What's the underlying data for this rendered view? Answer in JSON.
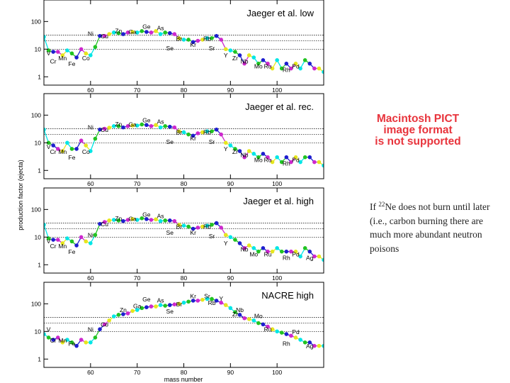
{
  "placeholder": {
    "lines": [
      "Macintosh PICT",
      "image format",
      "is not supported"
    ],
    "color": "#e8343c"
  },
  "note": {
    "prefix": "If ",
    "isotope_mass": "22",
    "isotope_rest": "Ne does not burn until later (i.e., carbon burning there are much more abundant neutron poisons"
  },
  "chart_data": {
    "type": "scatter",
    "shared": {
      "xlabel": "mass number",
      "ylabel": "production factor (ejecta)",
      "xlim": [
        50,
        110
      ],
      "ylim_log": [
        0.5,
        600
      ],
      "x_ticks": [
        "60",
        "70",
        "80",
        "90",
        "100"
      ],
      "y_ticks": [
        "1",
        "10",
        "100"
      ],
      "reference_lines": [
        10,
        20,
        32
      ],
      "colors": [
        "#00e6e6",
        "#22c322",
        "#1e1ecf",
        "#cd28cd",
        "#e6e61e"
      ],
      "x": [
        50,
        51,
        52,
        53,
        54,
        55,
        56,
        57,
        58,
        59,
        60,
        61,
        62,
        63,
        64,
        65,
        66,
        67,
        68,
        69,
        70,
        71,
        72,
        73,
        74,
        75,
        76,
        77,
        78,
        79,
        80,
        81,
        82,
        83,
        84,
        85,
        86,
        87,
        88,
        89,
        90,
        91,
        92,
        93,
        94,
        95,
        96,
        97,
        98,
        99,
        100,
        101,
        102,
        103,
        104,
        105,
        106,
        107,
        108,
        109,
        110
      ]
    },
    "panels": [
      {
        "title": "Jaeger et al. low",
        "values": [
          28,
          9,
          8,
          8,
          6,
          9,
          7,
          5,
          10,
          7,
          6,
          12,
          30,
          30,
          35,
          40,
          38,
          35,
          40,
          42,
          40,
          45,
          42,
          40,
          45,
          35,
          40,
          38,
          35,
          25,
          22,
          22,
          18,
          20,
          22,
          25,
          25,
          30,
          22,
          10,
          9,
          8,
          6,
          3,
          6,
          5,
          3,
          4,
          3,
          2,
          4,
          2,
          3,
          2,
          3,
          2,
          4,
          3,
          2,
          2,
          1.5
        ],
        "labels": [
          {
            "text": "V",
            "x": 51,
            "y": 6
          },
          {
            "text": "Cr",
            "x": 52,
            "y": 3
          },
          {
            "text": "Mn",
            "x": 54,
            "y": 4
          },
          {
            "text": "Fe",
            "x": 56,
            "y": 2.5
          },
          {
            "text": "Co",
            "x": 59,
            "y": 4
          },
          {
            "text": "Ni",
            "x": 60,
            "y": 30
          },
          {
            "text": "Cu",
            "x": 63,
            "y": 25
          },
          {
            "text": "Zn",
            "x": 66,
            "y": 38
          },
          {
            "text": "Ga",
            "x": 69,
            "y": 35
          },
          {
            "text": "Ge",
            "x": 72,
            "y": 55
          },
          {
            "text": "As",
            "x": 75,
            "y": 48
          },
          {
            "text": "Se",
            "x": 77,
            "y": 9
          },
          {
            "text": "Br",
            "x": 79,
            "y": 20
          },
          {
            "text": "Kr",
            "x": 82,
            "y": 12
          },
          {
            "text": "Rb",
            "x": 85,
            "y": 20
          },
          {
            "text": "Sr",
            "x": 86,
            "y": 9
          },
          {
            "text": "Y",
            "x": 89,
            "y": 5
          },
          {
            "text": "Zr",
            "x": 91,
            "y": 4
          },
          {
            "text": "Nb",
            "x": 93,
            "y": 3
          },
          {
            "text": "Mo",
            "x": 96,
            "y": 2
          },
          {
            "text": "Ru",
            "x": 98,
            "y": 2
          },
          {
            "text": "Rh",
            "x": 102,
            "y": 1.5
          },
          {
            "text": "Pd",
            "x": 104,
            "y": 2
          }
        ]
      },
      {
        "title": "Jaeger et al. rec.",
        "values": [
          30,
          10,
          8,
          6,
          5,
          10,
          6,
          6,
          12,
          8,
          5,
          14,
          30,
          32,
          35,
          40,
          40,
          36,
          40,
          42,
          42,
          46,
          44,
          40,
          44,
          36,
          40,
          38,
          36,
          26,
          24,
          20,
          18,
          22,
          24,
          26,
          26,
          30,
          20,
          10,
          8,
          6,
          5,
          3,
          5,
          4,
          3,
          4,
          3,
          2,
          3,
          2,
          3,
          2,
          3,
          2,
          3,
          3,
          2,
          2,
          1.5
        ],
        "labels": [
          {
            "text": "V",
            "x": 51,
            "y": 6
          },
          {
            "text": "Cr",
            "x": 52,
            "y": 4
          },
          {
            "text": "Mn",
            "x": 54,
            "y": 4
          },
          {
            "text": "Fe",
            "x": 56,
            "y": 2.5
          },
          {
            "text": "Co",
            "x": 59,
            "y": 4
          },
          {
            "text": "Ni",
            "x": 60,
            "y": 30
          },
          {
            "text": "Cu",
            "x": 63,
            "y": 25
          },
          {
            "text": "Zn",
            "x": 66,
            "y": 40
          },
          {
            "text": "Ga",
            "x": 69,
            "y": 38
          },
          {
            "text": "Ge",
            "x": 72,
            "y": 55
          },
          {
            "text": "As",
            "x": 75,
            "y": 48
          },
          {
            "text": "Se",
            "x": 77,
            "y": 9
          },
          {
            "text": "Br",
            "x": 79,
            "y": 20
          },
          {
            "text": "Kr",
            "x": 82,
            "y": 12
          },
          {
            "text": "Rb",
            "x": 85,
            "y": 20
          },
          {
            "text": "Sr",
            "x": 86,
            "y": 9
          },
          {
            "text": "Y",
            "x": 89,
            "y": 5
          },
          {
            "text": "Zr",
            "x": 91,
            "y": 4
          },
          {
            "text": "Nb",
            "x": 93,
            "y": 3
          },
          {
            "text": "Mo",
            "x": 96,
            "y": 2
          },
          {
            "text": "Ru",
            "x": 98,
            "y": 2
          },
          {
            "text": "Rh",
            "x": 102,
            "y": 1.5
          },
          {
            "text": "Pd",
            "x": 104,
            "y": 2
          }
        ]
      },
      {
        "title": "Jaeger et al. high",
        "values": [
          28,
          9,
          8,
          8,
          6,
          9,
          7,
          5,
          10,
          7,
          6,
          12,
          30,
          35,
          40,
          42,
          40,
          38,
          42,
          45,
          42,
          48,
          45,
          42,
          44,
          38,
          40,
          40,
          38,
          28,
          26,
          24,
          20,
          22,
          24,
          26,
          28,
          32,
          22,
          12,
          10,
          8,
          6,
          4,
          5,
          4,
          3,
          4,
          3,
          3,
          4,
          3,
          3,
          3,
          3,
          2,
          4,
          3,
          2,
          2,
          1.5
        ],
        "labels": [
          {
            "text": "V",
            "x": 51,
            "y": 6
          },
          {
            "text": "Cr",
            "x": 52,
            "y": 4
          },
          {
            "text": "Mn",
            "x": 54,
            "y": 4
          },
          {
            "text": "Fe",
            "x": 56,
            "y": 2.5
          },
          {
            "text": "Ni",
            "x": 60,
            "y": 10
          },
          {
            "text": "Cu",
            "x": 63,
            "y": 25
          },
          {
            "text": "Zn",
            "x": 66,
            "y": 40
          },
          {
            "text": "Ga",
            "x": 69,
            "y": 38
          },
          {
            "text": "Ge",
            "x": 72,
            "y": 55
          },
          {
            "text": "As",
            "x": 75,
            "y": 48
          },
          {
            "text": "Se",
            "x": 77,
            "y": 12
          },
          {
            "text": "Br",
            "x": 79,
            "y": 20
          },
          {
            "text": "Kr",
            "x": 82,
            "y": 12
          },
          {
            "text": "Rb",
            "x": 85,
            "y": 20
          },
          {
            "text": "Sr",
            "x": 86,
            "y": 9
          },
          {
            "text": "Y",
            "x": 89,
            "y": 5
          },
          {
            "text": "Nb",
            "x": 93,
            "y": 3
          },
          {
            "text": "Mo",
            "x": 95,
            "y": 2
          },
          {
            "text": "Ru",
            "x": 98,
            "y": 2
          },
          {
            "text": "Rh",
            "x": 102,
            "y": 1.5
          },
          {
            "text": "Pd",
            "x": 104,
            "y": 2
          },
          {
            "text": "Ag",
            "x": 107,
            "y": 1.5
          }
        ]
      },
      {
        "title": "NACRE high",
        "values": [
          8,
          6,
          5,
          6,
          4,
          5,
          4,
          3,
          5,
          4,
          4,
          6,
          12,
          18,
          25,
          35,
          40,
          42,
          45,
          55,
          60,
          70,
          75,
          80,
          80,
          90,
          85,
          90,
          95,
          100,
          110,
          120,
          130,
          130,
          140,
          150,
          150,
          130,
          110,
          90,
          70,
          50,
          40,
          30,
          28,
          25,
          20,
          18,
          15,
          12,
          10,
          9,
          8,
          7,
          6,
          5,
          4,
          4,
          3,
          3,
          3
        ],
        "labels": [
          {
            "text": "V",
            "x": 51,
            "y": 10
          },
          {
            "text": "Cr",
            "x": 52,
            "y": 4
          },
          {
            "text": "Mn",
            "x": 54,
            "y": 4
          },
          {
            "text": "Fe",
            "x": 56,
            "y": 3
          },
          {
            "text": "Ni",
            "x": 60,
            "y": 10
          },
          {
            "text": "Co",
            "x": 63,
            "y": 15
          },
          {
            "text": "Zn",
            "x": 67,
            "y": 50
          },
          {
            "text": "Ga",
            "x": 70,
            "y": 70
          },
          {
            "text": "Ge",
            "x": 72,
            "y": 120
          },
          {
            "text": "As",
            "x": 75,
            "y": 110
          },
          {
            "text": "Se",
            "x": 77,
            "y": 45
          },
          {
            "text": "Br",
            "x": 79,
            "y": 80
          },
          {
            "text": "Kr",
            "x": 82,
            "y": 160
          },
          {
            "text": "Sr",
            "x": 85,
            "y": 160
          },
          {
            "text": "Y",
            "x": 88,
            "y": 130
          },
          {
            "text": "Rb",
            "x": 86,
            "y": 90
          },
          {
            "text": "Nb",
            "x": 92,
            "y": 50
          },
          {
            "text": "Zr",
            "x": 91,
            "y": 35
          },
          {
            "text": "Mo",
            "x": 96,
            "y": 30
          },
          {
            "text": "Ru",
            "x": 98,
            "y": 10
          },
          {
            "text": "Rh",
            "x": 102,
            "y": 3
          },
          {
            "text": "Pd",
            "x": 104,
            "y": 8
          },
          {
            "text": "Ag",
            "x": 107,
            "y": 2.5
          }
        ]
      }
    ]
  }
}
